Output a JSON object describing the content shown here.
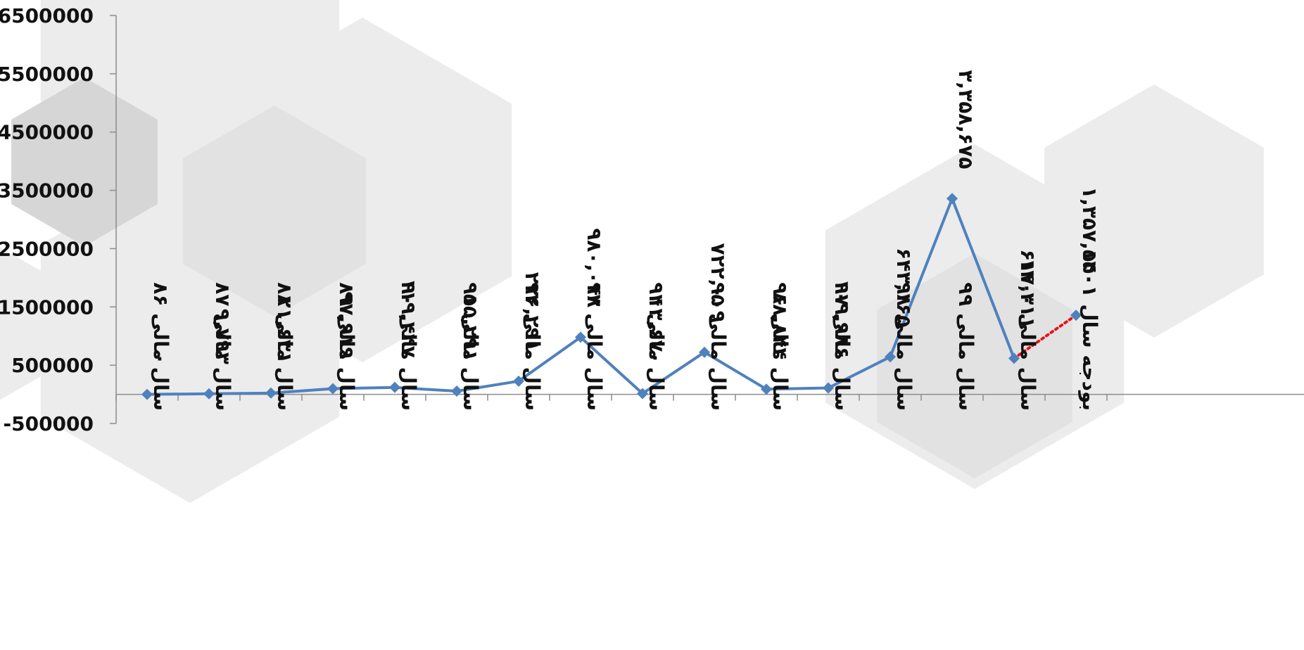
{
  "chart_data": {
    "type": "line",
    "categories": [
      "سال مالی ۸۶",
      "سال مالی ۸۷",
      "سال مالی ۸۸",
      "سال مالی ۸۹",
      "سال مالی ۹۰",
      "سال مالی ۹۱",
      "سال مالی ۹۲",
      "سال مالی ۹۳",
      "سال مالی ۹۴",
      "سال مالی ۹۵",
      "سال مالی ۹۶",
      "سال مالی ۹۷",
      "سال مالی ۹۸",
      "سال مالی ۹۹",
      "سال مالی ۱۴۰۰",
      "بودجه سال ۱۴۰۱"
    ],
    "values": [
      0,
      9793,
      21631,
      97919,
      119447,
      55291,
      226291,
      980048,
      13670,
      722009,
      88844,
      109986,
      643165,
      3358675,
      617311,
      1357550
    ],
    "data_labels": [
      "۰",
      "۹,۷۹۳",
      "۲۱,۶۳۱",
      "۹۷,۹۱۹",
      "۱۱۹,۴۴۷",
      "۵۵,۲۹۱",
      "۲۲۶,۲۹۱",
      "۹۸۰,۰۴۸",
      "۱۳,۶۷۰",
      "۷۲۲,۰۰۹",
      "۸۸,۸۴۴",
      "۱۰۹,۹۸۶",
      "۶۴۳,۱۶۵",
      "۳,۳۵۸,۶۷۵",
      "۶۱۷,۳۱۱",
      "۱,۳۵۷,۵۵۰"
    ],
    "projected_segment_from_index": 14,
    "ylim": [
      -500000,
      6500000
    ],
    "yticks": [
      -500000,
      500000,
      1500000,
      2500000,
      3500000,
      4500000,
      5500000,
      6500000
    ],
    "ytick_labels": [
      "-500000",
      "500000",
      "1500000",
      "2500000",
      "3500000",
      "4500000",
      "5500000",
      "6500000"
    ],
    "grid": false,
    "legend": "none",
    "title": "",
    "xlabel": "",
    "ylabel": ""
  },
  "colors": {
    "line": "#4f81bd",
    "marker": "#4f81bd",
    "projected_line": "#e8141a",
    "axis": "#8c8c8c",
    "text": "#111111",
    "hex_light": "#ececec",
    "hex_mid": "#e2e2e2",
    "hex_dark": "#d6d6d6"
  }
}
